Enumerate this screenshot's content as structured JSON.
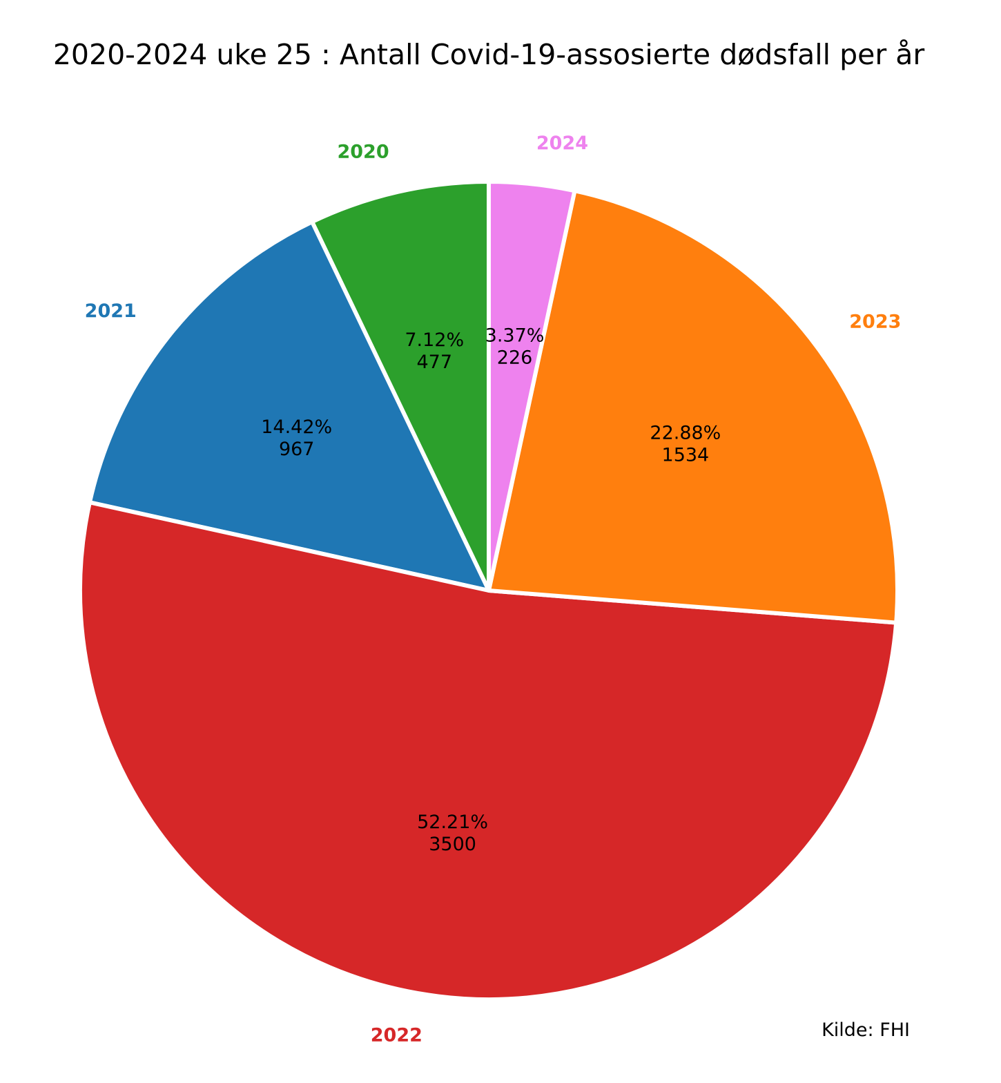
{
  "chart_data": {
    "type": "pie",
    "title": "2020-2024 uke 25 : Antall Covid-19-assosierte dødsfall per år",
    "source": "Kilde: FHI",
    "start_angle_deg": 90,
    "direction": "counterclockwise",
    "slices": [
      {
        "label": "2020",
        "value": 477,
        "percent_text": "7.12%",
        "value_text": "477",
        "color": "#2ca02c"
      },
      {
        "label": "2021",
        "value": 967,
        "percent_text": "14.42%",
        "value_text": "967",
        "color": "#1f77b4"
      },
      {
        "label": "2022",
        "value": 3500,
        "percent_text": "52.21%",
        "value_text": "3500",
        "color": "#d62728"
      },
      {
        "label": "2023",
        "value": 1534,
        "percent_text": "22.88%",
        "value_text": "1534",
        "color": "#ff7f0e"
      },
      {
        "label": "2024",
        "value": 226,
        "percent_text": "3.37%",
        "value_text": "226",
        "color": "#ee82ee"
      }
    ]
  }
}
